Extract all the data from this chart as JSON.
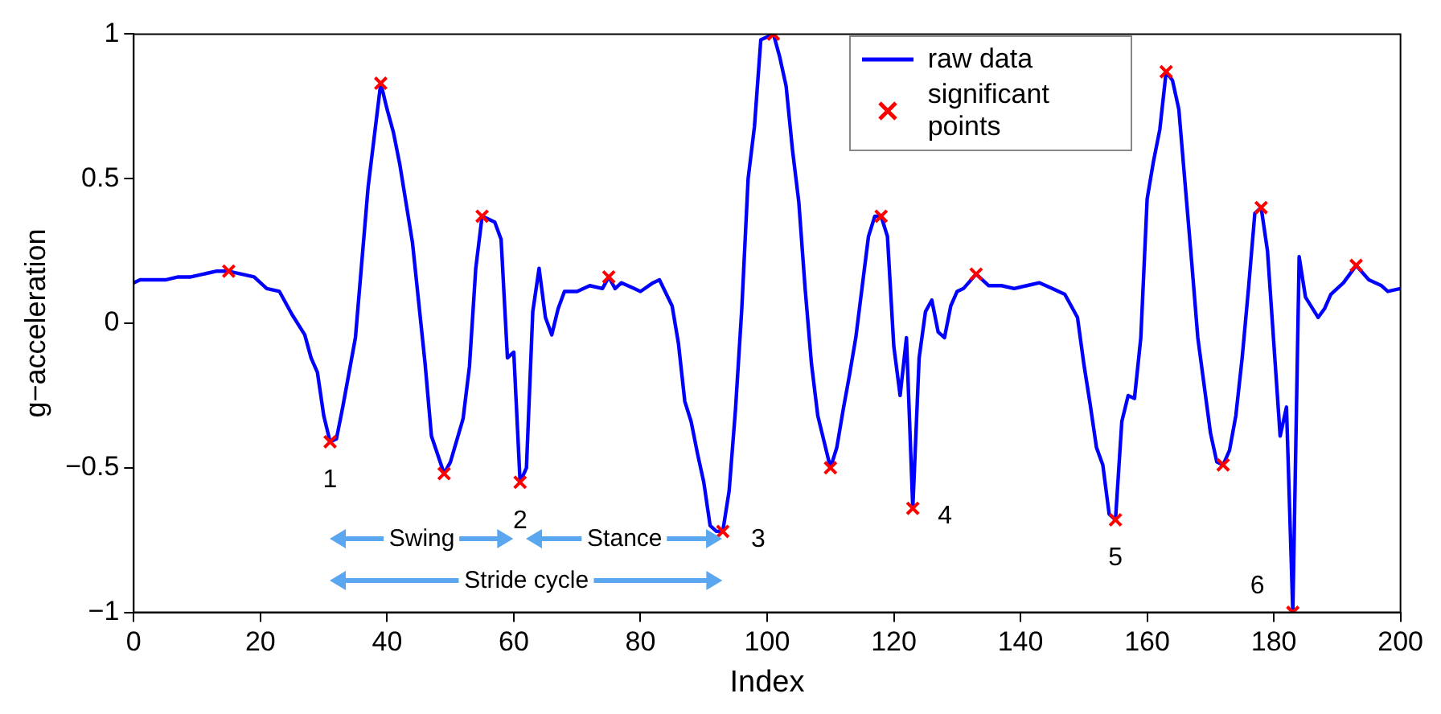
{
  "chart_data": {
    "type": "line",
    "xlabel": "Index",
    "ylabel": "g−acceleration",
    "xlim": [
      0,
      200
    ],
    "xticks": [
      0,
      20,
      40,
      60,
      80,
      100,
      120,
      140,
      160,
      180,
      200
    ],
    "ylim": [
      -1,
      1
    ],
    "yticks": [
      {
        "value": -1,
        "label": "−1"
      },
      {
        "value": -0.5,
        "label": "−0.5"
      },
      0,
      0.5,
      1
    ],
    "grid": false,
    "legend": "top right",
    "series": [
      {
        "name": "raw data",
        "color": "#0000ff",
        "marker": "none",
        "line_style": "solid",
        "x": [
          0,
          1,
          3,
          5,
          7,
          9,
          11,
          13,
          15,
          17,
          19,
          21,
          23,
          25,
          27,
          28,
          29,
          30,
          31,
          32,
          33,
          35,
          37,
          39,
          40,
          41,
          42,
          44,
          46,
          47,
          49,
          50,
          52,
          53,
          54,
          55,
          56,
          57,
          58,
          59,
          60,
          61,
          62,
          63,
          64,
          65,
          66,
          67,
          68,
          70,
          72,
          74,
          75,
          76,
          77,
          79,
          80,
          82,
          83,
          85,
          86,
          87,
          88,
          89,
          90,
          91,
          92,
          93,
          94,
          95,
          96,
          97,
          98,
          99,
          101,
          102,
          103,
          104,
          105,
          106,
          107,
          108,
          110,
          111,
          112,
          113,
          114,
          116,
          117,
          118,
          119,
          120,
          121,
          122,
          123,
          124,
          125,
          126,
          127,
          128,
          129,
          130,
          131,
          133,
          135,
          137,
          139,
          141,
          143,
          145,
          147,
          149,
          150,
          151,
          152,
          153,
          154,
          155,
          156,
          157,
          158,
          159,
          160,
          161,
          162,
          163,
          164,
          165,
          166,
          167,
          168,
          170,
          171,
          172,
          173,
          174,
          175,
          176,
          177,
          178,
          179,
          180,
          181,
          182,
          183,
          184,
          185,
          187,
          188,
          189,
          191,
          193,
          195,
          197,
          198,
          200
        ],
        "values": [
          0.14,
          0.15,
          0.15,
          0.15,
          0.16,
          0.16,
          0.17,
          0.18,
          0.18,
          0.17,
          0.16,
          0.12,
          0.11,
          0.03,
          -0.04,
          -0.12,
          -0.17,
          -0.32,
          -0.41,
          -0.4,
          -0.29,
          -0.05,
          0.47,
          0.83,
          0.74,
          0.66,
          0.55,
          0.28,
          -0.14,
          -0.39,
          -0.52,
          -0.48,
          -0.33,
          -0.15,
          0.19,
          0.37,
          0.36,
          0.35,
          0.29,
          -0.12,
          -0.1,
          -0.55,
          -0.5,
          0.04,
          0.19,
          0.02,
          -0.04,
          0.05,
          0.11,
          0.11,
          0.13,
          0.12,
          0.16,
          0.12,
          0.14,
          0.12,
          0.11,
          0.14,
          0.15,
          0.06,
          -0.07,
          -0.27,
          -0.34,
          -0.45,
          -0.55,
          -0.7,
          -0.72,
          -0.72,
          -0.58,
          -0.3,
          0.05,
          0.5,
          0.68,
          0.98,
          1.0,
          0.92,
          0.82,
          0.6,
          0.42,
          0.12,
          -0.14,
          -0.32,
          -0.5,
          -0.43,
          -0.3,
          -0.18,
          -0.05,
          0.3,
          0.37,
          0.37,
          0.3,
          -0.08,
          -0.25,
          -0.05,
          -0.64,
          -0.12,
          0.04,
          0.08,
          -0.03,
          -0.05,
          0.06,
          0.11,
          0.12,
          0.17,
          0.13,
          0.13,
          0.12,
          0.13,
          0.14,
          0.12,
          0.1,
          0.02,
          -0.14,
          -0.28,
          -0.43,
          -0.49,
          -0.66,
          -0.68,
          -0.34,
          -0.25,
          -0.26,
          -0.05,
          0.43,
          0.56,
          0.67,
          0.87,
          0.84,
          0.74,
          0.48,
          0.22,
          -0.05,
          -0.38,
          -0.48,
          -0.49,
          -0.44,
          -0.32,
          -0.12,
          0.12,
          0.38,
          0.4,
          0.25,
          -0.07,
          -0.39,
          -0.29,
          -1.0,
          0.23,
          0.09,
          0.02,
          0.05,
          0.1,
          0.14,
          0.2,
          0.15,
          0.13,
          0.11,
          0.12
        ]
      },
      {
        "name": "significant points",
        "type": "scatter",
        "color": "#ff0000",
        "marker": "cross",
        "x": [
          15,
          31,
          39,
          49,
          55,
          61,
          75,
          93,
          101,
          110,
          118,
          123,
          133,
          155,
          163,
          172,
          178,
          183,
          193
        ],
        "values": [
          0.18,
          -0.41,
          0.83,
          -0.52,
          0.37,
          -0.55,
          0.16,
          -0.72,
          1.0,
          -0.5,
          0.37,
          -0.64,
          0.17,
          -0.68,
          0.87,
          -0.49,
          0.4,
          -1.0,
          0.2
        ]
      }
    ],
    "annotations": [
      {
        "text": "1",
        "x": 31,
        "y": -0.41
      },
      {
        "text": "2",
        "x": 61,
        "y": -0.55
      },
      {
        "text": "3",
        "x": 93,
        "y": -0.72
      },
      {
        "text": "4",
        "x": 123,
        "y": -0.64
      },
      {
        "text": "5",
        "x": 155,
        "y": -0.68
      },
      {
        "text": "6",
        "x": 183,
        "y": -1.0
      },
      "Swing",
      "Stance",
      "Stride cycle"
    ]
  }
}
